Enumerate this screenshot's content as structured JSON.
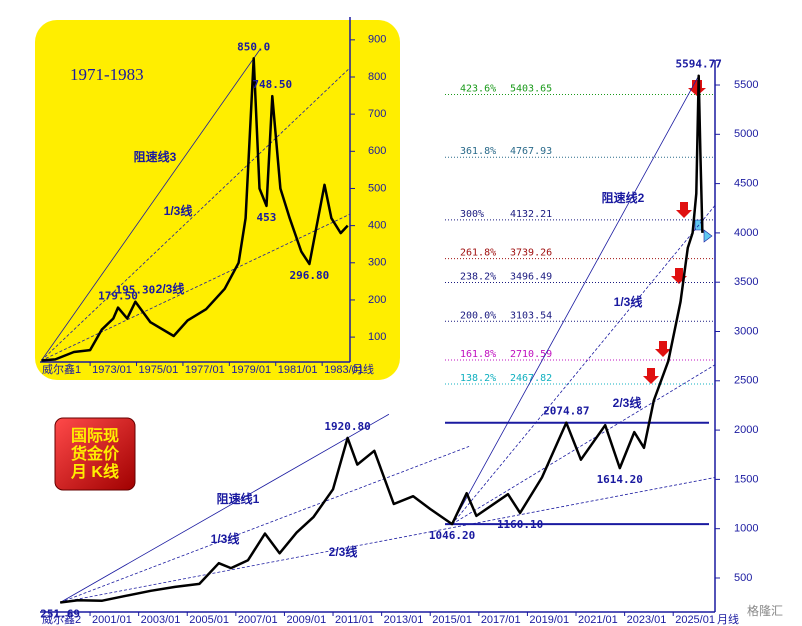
{
  "badge": {
    "lines": [
      "国际现",
      "货金价",
      "月 K线"
    ]
  },
  "watermark": "格隆汇",
  "chart_data": [
    {
      "type": "line",
      "title": "1971-1983",
      "color": "#000000",
      "axis_color": "#1a1aa0",
      "x": [
        1970.9,
        1971.5,
        1972.3,
        1973.0,
        1973.5,
        1974.0,
        1974.2,
        1974.6,
        1974.95,
        1975.6,
        1976.6,
        1977.2,
        1978.0,
        1978.8,
        1979.4,
        1979.7,
        1980.05,
        1980.3,
        1980.6,
        1980.85,
        1981.2,
        1981.6,
        1982.1,
        1982.45,
        1983.1,
        1983.4,
        1983.8,
        1984.1
      ],
      "values": [
        37,
        40,
        60,
        65,
        120,
        150,
        179.5,
        150,
        195.3,
        140,
        103,
        145,
        175,
        230,
        300,
        420,
        850,
        500,
        453,
        748.5,
        500,
        420,
        330,
        296.8,
        510,
        420,
        380,
        400
      ],
      "value_labels": [
        null,
        null,
        null,
        null,
        null,
        null,
        "179.50",
        null,
        "195.30",
        null,
        null,
        null,
        null,
        null,
        null,
        null,
        "850.0",
        null,
        "453",
        "748.50",
        null,
        null,
        null,
        "296.80",
        null,
        null,
        null,
        null
      ],
      "xlim": [
        1970.84,
        1984.2
      ],
      "ylim": [
        33,
        948
      ],
      "xticks": [
        {
          "value": 1973,
          "label": "1973/01"
        },
        {
          "value": 1975,
          "label": "1975/01"
        },
        {
          "value": 1977,
          "label": "1977/01"
        },
        {
          "value": 1979,
          "label": "1979/01"
        },
        {
          "value": 1981,
          "label": "1981/01"
        },
        {
          "value": 1983,
          "label": "1983/01"
        }
      ],
      "yticks": [
        100,
        200,
        300,
        400,
        500,
        600,
        700,
        800,
        900
      ],
      "axis_prefix": "威尔鑫1",
      "axis_unit": "月线",
      "annotations": [
        "阻速线3",
        "1/3线",
        "2/3线"
      ]
    },
    {
      "type": "line",
      "color": "#000000",
      "axis_color": "#1a1aa0",
      "x": [
        1999.77,
        2000.5,
        2001.5,
        2002.5,
        2003.5,
        2004.5,
        2005.5,
        2006.3,
        2006.8,
        2007.5,
        2008.2,
        2008.8,
        2009.5,
        2010.2,
        2011.0,
        2011.6,
        2012.0,
        2012.7,
        2013.5,
        2014.3,
        2015.0,
        2015.9,
        2016.5,
        2016.9,
        2018.2,
        2018.7,
        2019.6,
        2020.6,
        2021.2,
        2022.2,
        2022.8,
        2023.4,
        2023.8,
        2024.2,
        2024.8,
        2025.3,
        2025.6,
        2025.8,
        2025.95,
        2026.05,
        2026.12,
        2026.2
      ],
      "values": [
        251.69,
        275,
        270,
        320,
        370,
        410,
        440,
        650,
        600,
        680,
        950,
        750,
        960,
        1120,
        1400,
        1920.8,
        1650,
        1790,
        1250,
        1330,
        1200,
        1046.2,
        1360,
        1130,
        1350,
        1160.1,
        1520,
        2074.87,
        1700,
        2050,
        1614.2,
        1980,
        1820,
        2300,
        2700,
        3300,
        3850,
        4000,
        4400,
        5594.77,
        4800,
        4000
      ],
      "value_labels": [
        "251.69",
        null,
        null,
        null,
        null,
        null,
        null,
        null,
        null,
        null,
        null,
        null,
        null,
        null,
        null,
        "1920.80",
        null,
        null,
        null,
        null,
        null,
        "1046.20",
        null,
        null,
        null,
        "1160.10",
        null,
        "2074.87",
        null,
        null,
        "1614.20",
        null,
        null,
        null,
        null,
        null,
        null,
        null,
        null,
        "5594.77",
        null,
        null
      ],
      "xlim": [
        1998.94,
        2026.72
      ],
      "ylim": [
        155,
        5703
      ],
      "xticks": [
        {
          "value": 2001,
          "label": "2001/01"
        },
        {
          "value": 2003,
          "label": "2003/01"
        },
        {
          "value": 2005,
          "label": "2005/01"
        },
        {
          "value": 2007,
          "label": "2007/01"
        },
        {
          "value": 2009,
          "label": "2009/01"
        },
        {
          "value": 2011,
          "label": "2011/01"
        },
        {
          "value": 2013,
          "label": "2013/01"
        },
        {
          "value": 2015,
          "label": "2015/01"
        },
        {
          "value": 2017,
          "label": "2017/01"
        },
        {
          "value": 2019,
          "label": "2019/01"
        },
        {
          "value": 2021,
          "label": "2021/01"
        },
        {
          "value": 2023,
          "label": "2023/01"
        },
        {
          "value": 2025,
          "label": "2025/01"
        }
      ],
      "yticks": [
        500,
        1000,
        1500,
        2000,
        2500,
        3000,
        3500,
        4000,
        4500,
        5000,
        5500
      ],
      "axis_prefix": "威尔鑫2",
      "axis_unit": "月线",
      "annotations": [
        "阻速线1",
        "1/3线",
        "2/3线",
        "阻速线2",
        "1/3线",
        "2/3线"
      ],
      "levels": [
        {
          "name": "423.6%",
          "value": 5403.65,
          "color": "#1a9a1a"
        },
        {
          "name": "361.8%",
          "value": 4767.93,
          "color": "#2a6a8a"
        },
        {
          "name": "300%",
          "value": 4132.21,
          "color": "#1a1a80"
        },
        {
          "name": "261.8%",
          "value": 3739.26,
          "color": "#a01010"
        },
        {
          "name": "238.2%",
          "value": 3496.49,
          "color": "#1a1a80"
        },
        {
          "name": "200.0%",
          "value": 3103.54,
          "color": "#1a1a80"
        },
        {
          "name": "161.8%",
          "value": 2710.59,
          "color": "#c010c0"
        },
        {
          "name": "138.2%",
          "value": 2467.82,
          "color": "#10b0c0"
        }
      ]
    }
  ]
}
